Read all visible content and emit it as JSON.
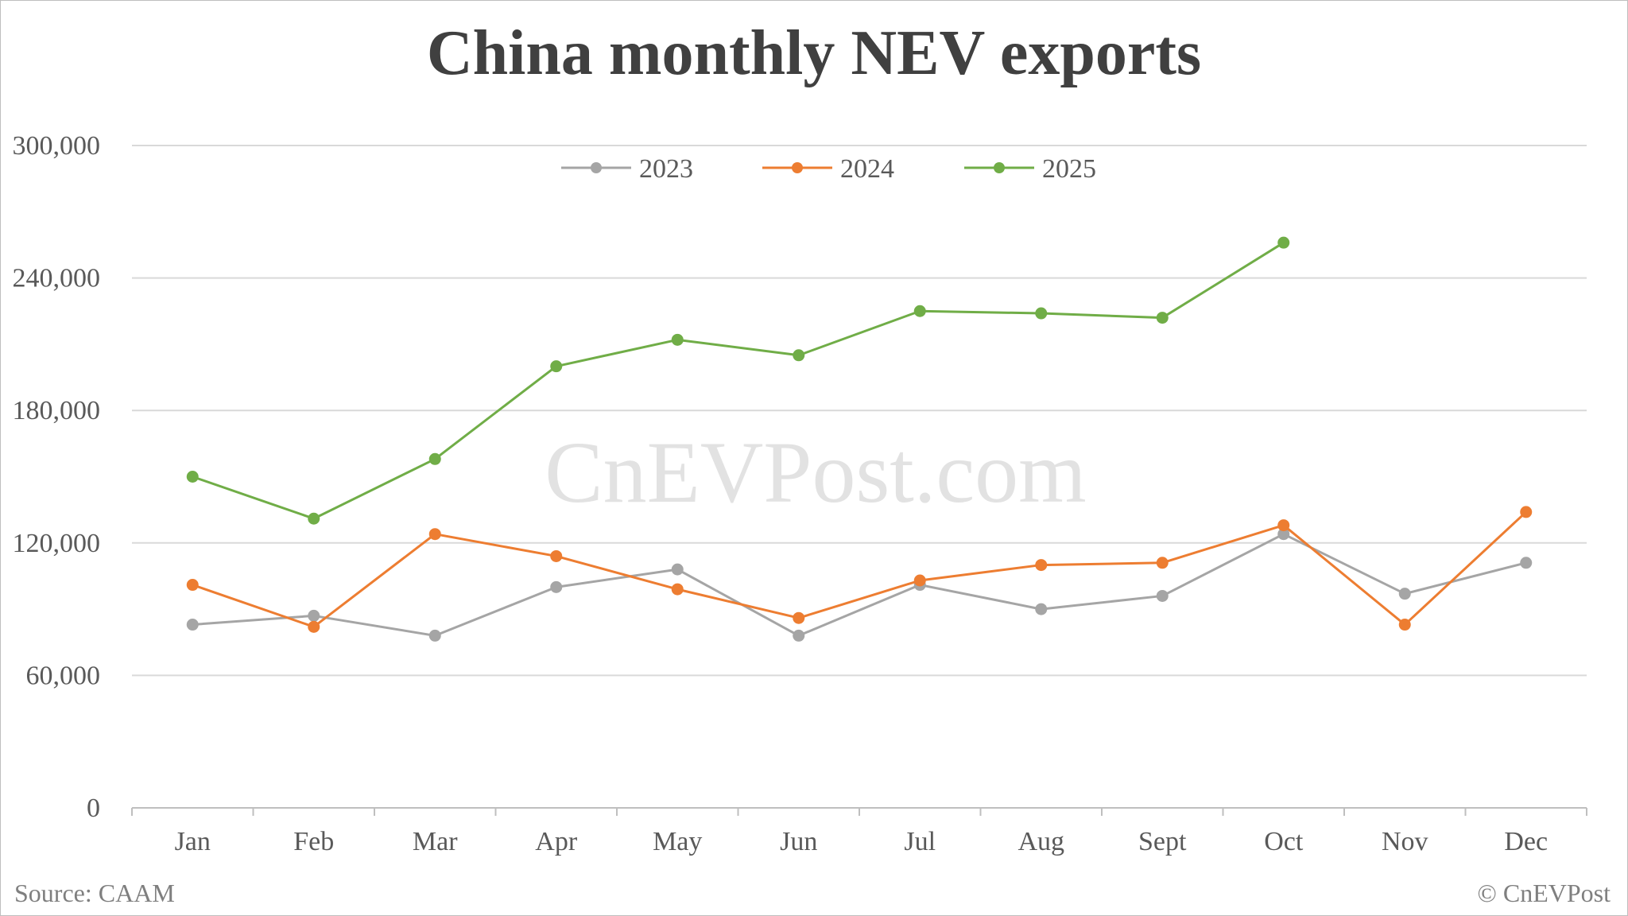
{
  "chart_data": {
    "type": "line",
    "title": "China monthly NEV exports",
    "categories": [
      "Jan",
      "Feb",
      "Mar",
      "Apr",
      "May",
      "Jun",
      "Jul",
      "Aug",
      "Sept",
      "Oct",
      "Nov",
      "Dec"
    ],
    "ylim": [
      0,
      300000
    ],
    "yticks": [
      0,
      60000,
      120000,
      180000,
      240000,
      300000
    ],
    "ytick_labels": [
      "0",
      "60,000",
      "120,000",
      "180,000",
      "240,000",
      "300,000"
    ],
    "grid": true,
    "legend_position": "top-center",
    "series": [
      {
        "name": "2023",
        "color": "#a5a5a5",
        "values": [
          83000,
          87000,
          78000,
          100000,
          108000,
          78000,
          101000,
          90000,
          96000,
          124000,
          97000,
          111000
        ]
      },
      {
        "name": "2024",
        "color": "#ed7d31",
        "values": [
          101000,
          82000,
          124000,
          114000,
          99000,
          86000,
          103000,
          110000,
          111000,
          128000,
          83000,
          134000
        ]
      },
      {
        "name": "2025",
        "color": "#70ad47",
        "values": [
          150000,
          131000,
          158000,
          200000,
          212000,
          205000,
          225000,
          224000,
          222000,
          256000,
          null,
          null
        ]
      }
    ]
  },
  "footer": {
    "source": "Source: CAAM",
    "credit": "© CnEVPost"
  },
  "watermark": "CnEVPost.com",
  "colors": {
    "grid": "#d9d9d9",
    "axis": "#bfbfbf",
    "text": "#595959",
    "title": "#404040"
  }
}
